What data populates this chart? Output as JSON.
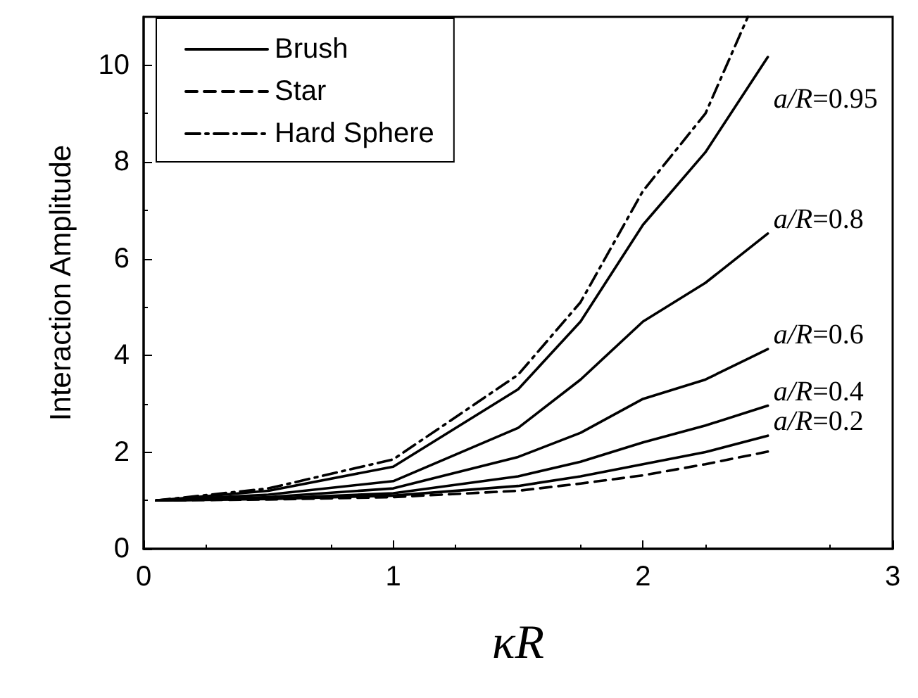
{
  "chart_data": {
    "type": "line",
    "xlabel": "κR",
    "ylabel": "Interaction Amplitude",
    "xlim": [
      0,
      3
    ],
    "ylim": [
      0,
      11
    ],
    "xticks": [
      0,
      1,
      2,
      3
    ],
    "yticks": [
      0,
      2,
      4,
      6,
      8,
      10
    ],
    "grid": false,
    "legend": "top left",
    "marker": "none",
    "series": [
      {
        "name": "Brush",
        "color": "#000000",
        "line_style": "solid",
        "x": [
          0.05,
          0.5,
          1,
          1.5,
          1.75,
          2,
          2.25,
          2.5
        ],
        "values": [
          1,
          1.2,
          1.7,
          3.3,
          4.7,
          6.7,
          8.2,
          10.17
        ]
      },
      {
        "color": "#000000",
        "line_style": "solid",
        "x": [
          0.05,
          0.5,
          1,
          1.5,
          1.75,
          2,
          2.25,
          2.5
        ],
        "values": [
          1,
          1.12,
          1.4,
          2.5,
          3.5,
          4.7,
          5.5,
          6.52
        ]
      },
      {
        "color": "#000000",
        "line_style": "solid",
        "x": [
          0.05,
          0.5,
          1,
          1.5,
          1.75,
          2,
          2.25,
          2.5
        ],
        "values": [
          1,
          1.07,
          1.25,
          1.9,
          2.4,
          3.1,
          3.5,
          4.13
        ]
      },
      {
        "color": "#000000",
        "line_style": "solid",
        "x": [
          0.05,
          0.5,
          1,
          1.5,
          1.75,
          2,
          2.25,
          2.5
        ],
        "values": [
          1,
          1.04,
          1.15,
          1.5,
          1.8,
          2.2,
          2.55,
          2.96
        ]
      },
      {
        "color": "#000000",
        "line_style": "solid",
        "x": [
          0.05,
          0.5,
          1,
          1.5,
          1.75,
          2,
          2.25,
          2.5
        ],
        "values": [
          1,
          1.03,
          1.1,
          1.3,
          1.5,
          1.75,
          2.0,
          2.34
        ]
      },
      {
        "name": "Star",
        "color": "#000000",
        "line_style": "dashed",
        "x": [
          0.05,
          0.5,
          1,
          1.5,
          1.75,
          2,
          2.25,
          2.5
        ],
        "values": [
          1,
          1.02,
          1.07,
          1.2,
          1.35,
          1.52,
          1.75,
          2.01
        ]
      },
      {
        "name": "Hard Sphere",
        "color": "#000000",
        "line_style": "dashdot",
        "x": [
          0.05,
          0.5,
          1,
          1.5,
          1.75,
          2,
          2.25,
          2.42
        ],
        "values": [
          1,
          1.25,
          1.85,
          3.6,
          5.1,
          7.4,
          9.0,
          11
        ]
      }
    ],
    "annotations": [
      "a/R=0.95",
      "a/R=0.8",
      "a/R=0.6",
      "a/R=0.4",
      "a/R=0.2"
    ]
  }
}
